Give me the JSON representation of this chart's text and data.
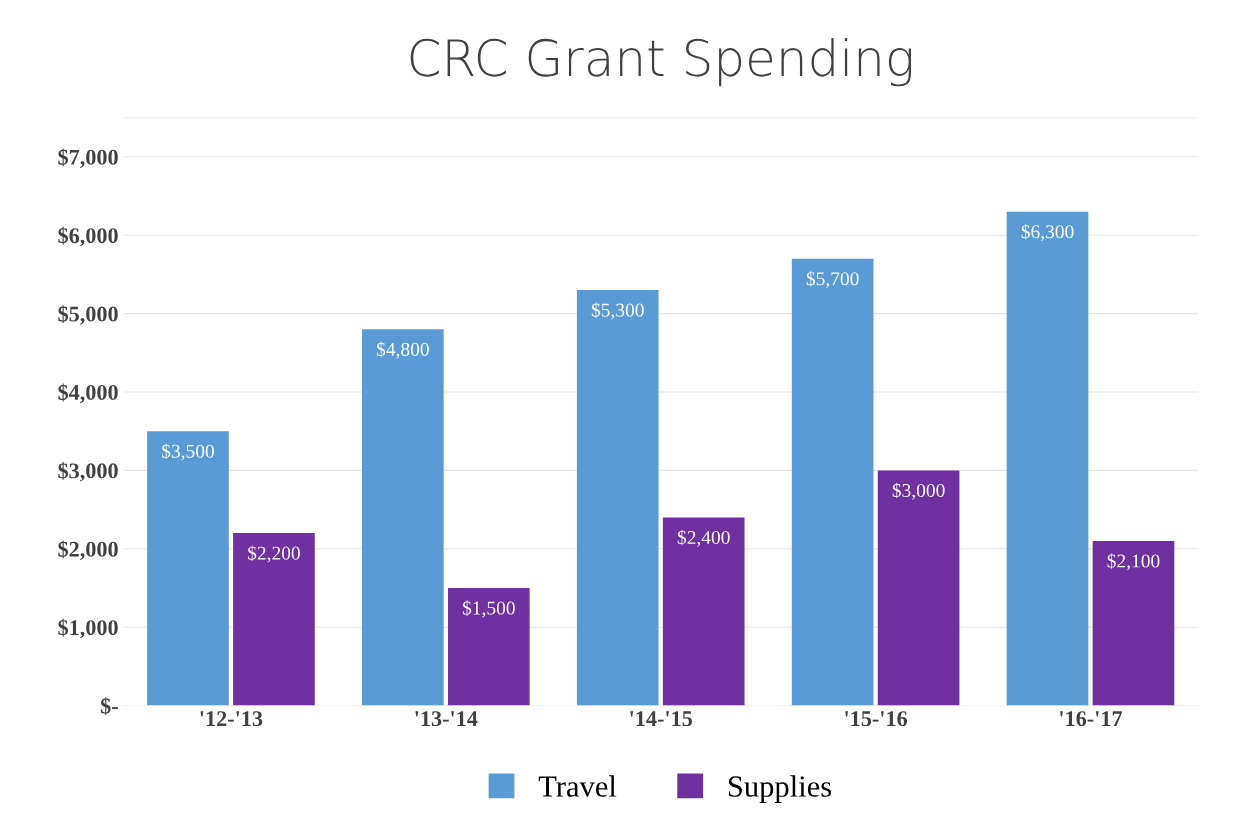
{
  "chart_data": {
    "type": "bar",
    "title": "CRC Grant Spending",
    "categories": [
      "'12-'13",
      "'13-'14",
      "'14-'15",
      "'15-'16",
      "'16-'17"
    ],
    "series": [
      {
        "name": "Travel",
        "color": "#5b9bd5",
        "values": [
          3500,
          4800,
          5300,
          5700,
          6300
        ],
        "value_labels": [
          "$3,500",
          "$4,800",
          "$5,300",
          "$5,700",
          "$6,300"
        ]
      },
      {
        "name": "Supplies",
        "color": "#7030a0",
        "values": [
          2200,
          1500,
          2400,
          3000,
          2100
        ],
        "value_labels": [
          "$2,200",
          "$1,500",
          "$2,400",
          "$3,000",
          "$2,100"
        ]
      }
    ],
    "ylim": [
      0,
      7500
    ],
    "yticks": [
      {
        "value": 0,
        "label": "$-"
      },
      {
        "value": 1000,
        "label": "$1,000"
      },
      {
        "value": 2000,
        "label": "$2,000"
      },
      {
        "value": 3000,
        "label": "$3,000"
      },
      {
        "value": 4000,
        "label": "$4,000"
      },
      {
        "value": 5000,
        "label": "$5,000"
      },
      {
        "value": 6000,
        "label": "$6,000"
      },
      {
        "value": 7000,
        "label": "$7,000"
      },
      {
        "value": 7500,
        "label": null
      }
    ],
    "grid": "y",
    "legend": "bottom"
  }
}
